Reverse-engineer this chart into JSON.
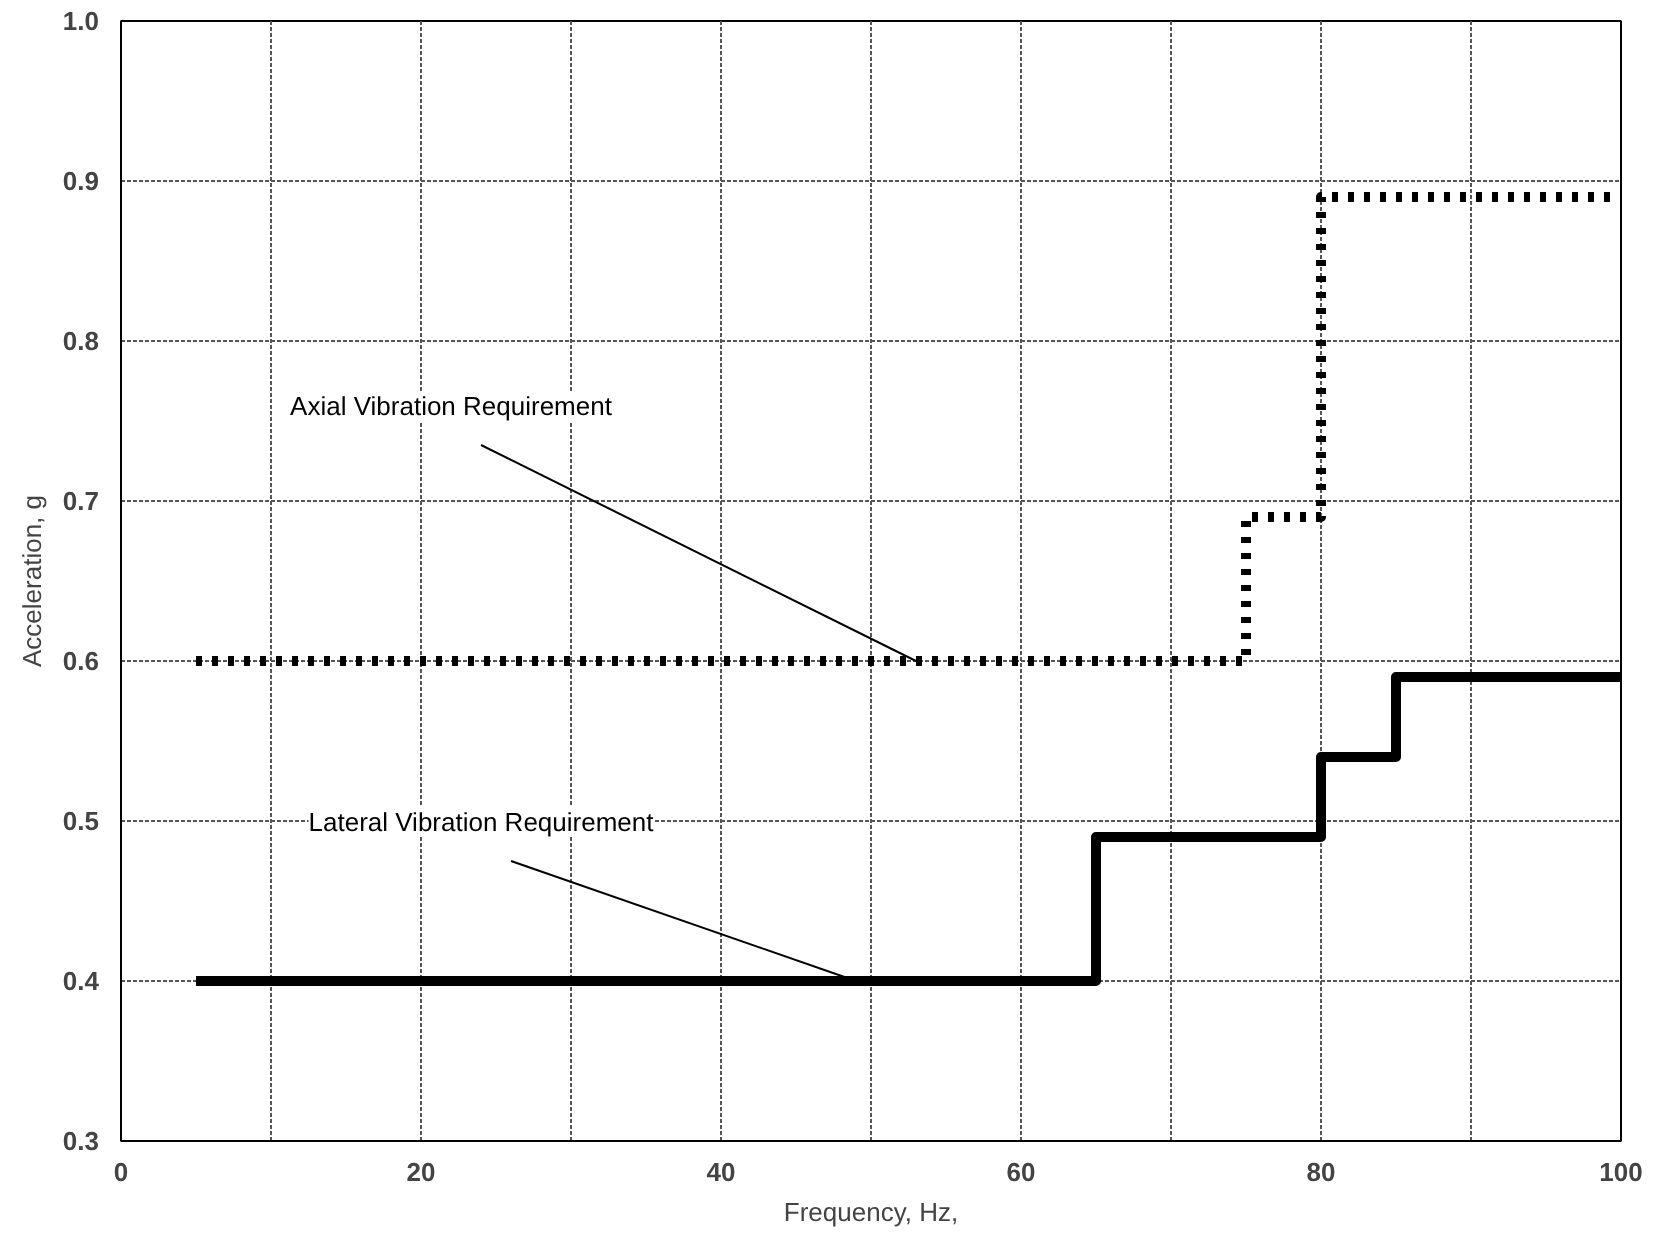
{
  "chart_data": {
    "type": "step",
    "xlabel": "Frequency, Hz,",
    "ylabel": "Acceleration, g",
    "xlim": [
      0,
      100
    ],
    "ylim": [
      0.3,
      1.0
    ],
    "xticks": [
      0,
      {
        "value": 10,
        "label": null
      },
      20,
      {
        "value": 30,
        "label": null
      },
      40,
      {
        "value": 50,
        "label": null
      },
      60,
      {
        "value": 70,
        "label": null
      },
      80,
      {
        "value": 90,
        "label": null
      },
      100
    ],
    "yticks": [
      0.3,
      0.4,
      0.5,
      0.6,
      0.7,
      0.8,
      0.9,
      {
        "value": 1.0,
        "label": "1.0"
      }
    ],
    "grid": true,
    "series": [
      {
        "color": "#000000",
        "line_style": "dotted",
        "x": [
          5,
          75,
          80,
          100
        ],
        "values": [
          0.6,
          0.69,
          0.89,
          0.89
        ]
      },
      {
        "color": "#000000",
        "line_style": "solid",
        "x": [
          5,
          65,
          80,
          85,
          100
        ],
        "values": [
          0.4,
          0.49,
          0.54,
          0.59,
          0.59
        ]
      }
    ],
    "annotations": [
      {
        "text": "Axial Vibration Requirement",
        "x": 53,
        "y": 0.6
      },
      {
        "text": "Lateral Vibration Requirement",
        "x": 49,
        "y": 0.4
      }
    ]
  }
}
